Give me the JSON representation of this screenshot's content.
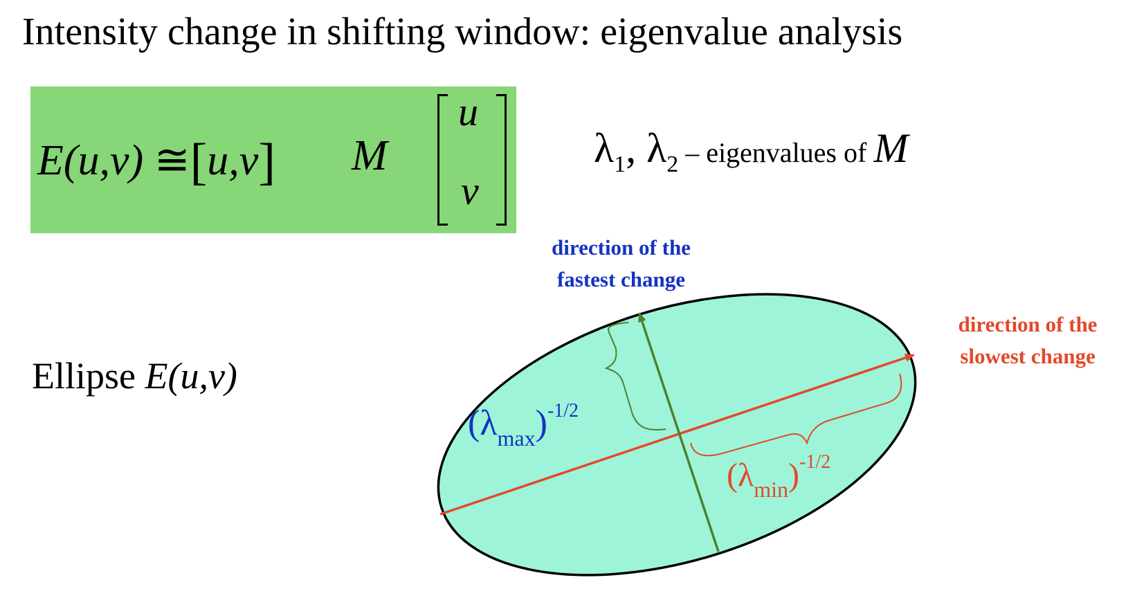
{
  "title": "Intensity change in shifting window: eigenvalue analysis",
  "equation": {
    "lhs": "E(u,v)",
    "approx": "≅",
    "row_vector": "u,v",
    "matrix": "M",
    "col_top": "u",
    "col_bottom": "v",
    "box_color": "#87d677"
  },
  "eigen_note": {
    "lambda1": "λ",
    "sub1": "1",
    "sep": ", ",
    "lambda2": "λ",
    "sub2": "2",
    "text": " – eigenvalues of ",
    "matrix": "M"
  },
  "ellipse_label": {
    "word": "Ellipse ",
    "expr": "E(u,v)"
  },
  "labels": {
    "fastest_line1": "direction of the",
    "fastest_line2": "fastest change",
    "slowest_line1": "direction of the",
    "slowest_line2": "slowest change"
  },
  "lambda_max": {
    "open": "(λ",
    "sub": "max",
    "close": ")",
    "sup": "-1/2"
  },
  "lambda_min": {
    "open": "(λ",
    "sub": "min",
    "close": ")",
    "sup": "-1/2"
  },
  "colors": {
    "ellipse_fill": "#9ef4d8",
    "major_axis": "#e2492b",
    "minor_axis": "#4f7f2f",
    "fastest_text": "#1532c4",
    "slowest_text": "#e2492b"
  }
}
